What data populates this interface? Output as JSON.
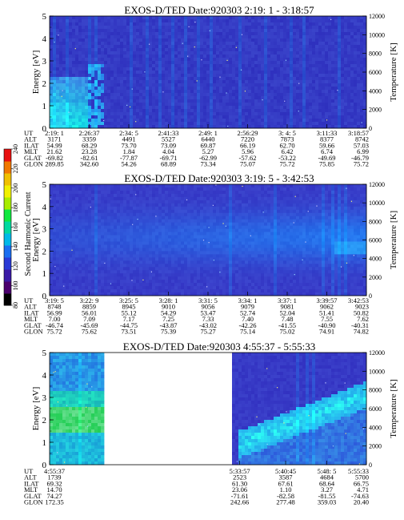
{
  "colorbar": {
    "label": "Second Harmonic Current",
    "tick_labels": [
      "80",
      "100",
      "120",
      "140",
      "160",
      "180",
      "200",
      "220",
      "240"
    ]
  },
  "chart_data": [
    {
      "type": "heatmap",
      "title": "EXOS-D/TED   Date:920303   2:19: 1 - 3:18:57",
      "ylabel": "Energy [eV]",
      "y2label": "Temperature [K]",
      "ylim": [
        0,
        5
      ],
      "y2lim": [
        0,
        12000
      ],
      "yticks": [
        "0",
        "1",
        "2",
        "3",
        "4",
        "5"
      ],
      "y2ticks": [
        "0",
        "2000",
        "4000",
        "6000",
        "8000",
        "10000",
        "12000"
      ],
      "coverage": [
        [
          0,
          1
        ]
      ],
      "row_labels": [
        "UT",
        "ALT",
        "ILAT",
        "MLT",
        "GLAT",
        "GLON"
      ],
      "columns": [
        {
          "ut": "2:19: 1",
          "values": [
            "3171",
            "54.99",
            "21.62",
            "-69.82",
            "289.85"
          ]
        },
        {
          "ut": "2:26:37",
          "values": [
            "3359",
            "68.29",
            "23.28",
            "-82.61",
            "342.60"
          ]
        },
        {
          "ut": "2:34: 5",
          "values": [
            "4491",
            "73.70",
            "1.84",
            "-77.87",
            "54.26"
          ]
        },
        {
          "ut": "2:41:33",
          "values": [
            "5527",
            "73.09",
            "4.04",
            "-69.71",
            "68.89"
          ]
        },
        {
          "ut": "2:49: 1",
          "values": [
            "6440",
            "69.87",
            "5.27",
            "-62.99",
            "73.34"
          ]
        },
        {
          "ut": "2:56:29",
          "values": [
            "7220",
            "66.19",
            "5.96",
            "-57.62",
            "75.07"
          ]
        },
        {
          "ut": "3: 4: 5",
          "values": [
            "7873",
            "62.70",
            "6.42",
            "-53.22",
            "75.72"
          ]
        },
        {
          "ut": "3:11:33",
          "values": [
            "8377",
            "59.66",
            "6.74",
            "-49.69",
            "75.85"
          ]
        },
        {
          "ut": "3:18:57",
          "values": [
            "8742",
            "57.03",
            "6.99",
            "-46.79",
            "75.72"
          ]
        }
      ]
    },
    {
      "type": "heatmap",
      "title": "EXOS-D/TED   Date:920303   3:19: 5 - 3:42:53",
      "ylabel": "Energy [eV]",
      "y2label": "Temperature [K]",
      "ylim": [
        0,
        5
      ],
      "y2lim": [
        0,
        12000
      ],
      "yticks": [
        "0",
        "1",
        "2",
        "3",
        "4",
        "5"
      ],
      "y2ticks": [
        "0",
        "2000",
        "4000",
        "6000",
        "8000",
        "10000",
        "12000"
      ],
      "coverage": [
        [
          0,
          1
        ]
      ],
      "row_labels": [
        "UT",
        "ALT",
        "ILAT",
        "MLT",
        "GLAT",
        "GLON"
      ],
      "columns": [
        {
          "ut": "3:19: 5",
          "values": [
            "8748",
            "56.99",
            "7.00",
            "-46.74",
            "75.72"
          ]
        },
        {
          "ut": "3:22: 9",
          "values": [
            "8859",
            "56.01",
            "7.09",
            "-45.69",
            "75.62"
          ]
        },
        {
          "ut": "3:25: 5",
          "values": [
            "8945",
            "55.12",
            "7.17",
            "-44.75",
            "73.51"
          ]
        },
        {
          "ut": "3:28: 1",
          "values": [
            "9010",
            "54.29",
            "7.25",
            "-43.87",
            "75.39"
          ]
        },
        {
          "ut": "3:31: 5",
          "values": [
            "9056",
            "53.47",
            "7.33",
            "-43.02",
            "75.27"
          ]
        },
        {
          "ut": "3:34: 1",
          "values": [
            "9079",
            "52.74",
            "7.40",
            "-42.26",
            "75.14"
          ]
        },
        {
          "ut": "3:37: 1",
          "values": [
            "9081",
            "52.04",
            "7.48",
            "-41.55",
            "75.02"
          ]
        },
        {
          "ut": "3:39:57",
          "values": [
            "9062",
            "51.41",
            "7.55",
            "-40.90",
            "74.91"
          ]
        },
        {
          "ut": "3:42:53",
          "values": [
            "9023",
            "50.82",
            "7.62",
            "-40.31",
            "74.82"
          ]
        }
      ]
    },
    {
      "type": "heatmap",
      "title": "EXOS-D/TED   Date:920303   4:55:37 - 5:55:33",
      "ylabel": "Energy [eV]",
      "y2label": "Temperature [K]",
      "ylim": [
        0,
        5
      ],
      "y2lim": [
        0,
        12000
      ],
      "yticks": [
        "0",
        "1",
        "2",
        "3",
        "4",
        "5"
      ],
      "y2ticks": [
        "0",
        "2000",
        "4000",
        "6000",
        "8000",
        "10000",
        "12000"
      ],
      "coverage": [
        [
          0,
          0.17
        ],
        [
          0.58,
          1
        ]
      ],
      "row_labels": [
        "UT",
        "ALT",
        "ILAT",
        "MLT",
        "GLAT",
        "GLON"
      ],
      "columns": [
        {
          "ut": "4:55:37",
          "values": [
            "1739",
            "69.32",
            "14.70",
            "74.27",
            "172.35"
          ]
        },
        {
          "ut": "5:33:57",
          "values": [
            "2523",
            "61.30",
            "23.06",
            "-71.61",
            "242.66"
          ]
        },
        {
          "ut": "5:40:45",
          "values": [
            "3587",
            "67.61",
            "1.10",
            "-82.58",
            "277.48"
          ]
        },
        {
          "ut": "5:48: 5",
          "values": [
            "4684",
            "68.64",
            "3.27",
            "-81.55",
            "359.03"
          ]
        },
        {
          "ut": "5:55:33",
          "values": [
            "5700",
            "66.75",
            "4.71",
            "-74.63",
            "20.40"
          ]
        }
      ]
    }
  ]
}
